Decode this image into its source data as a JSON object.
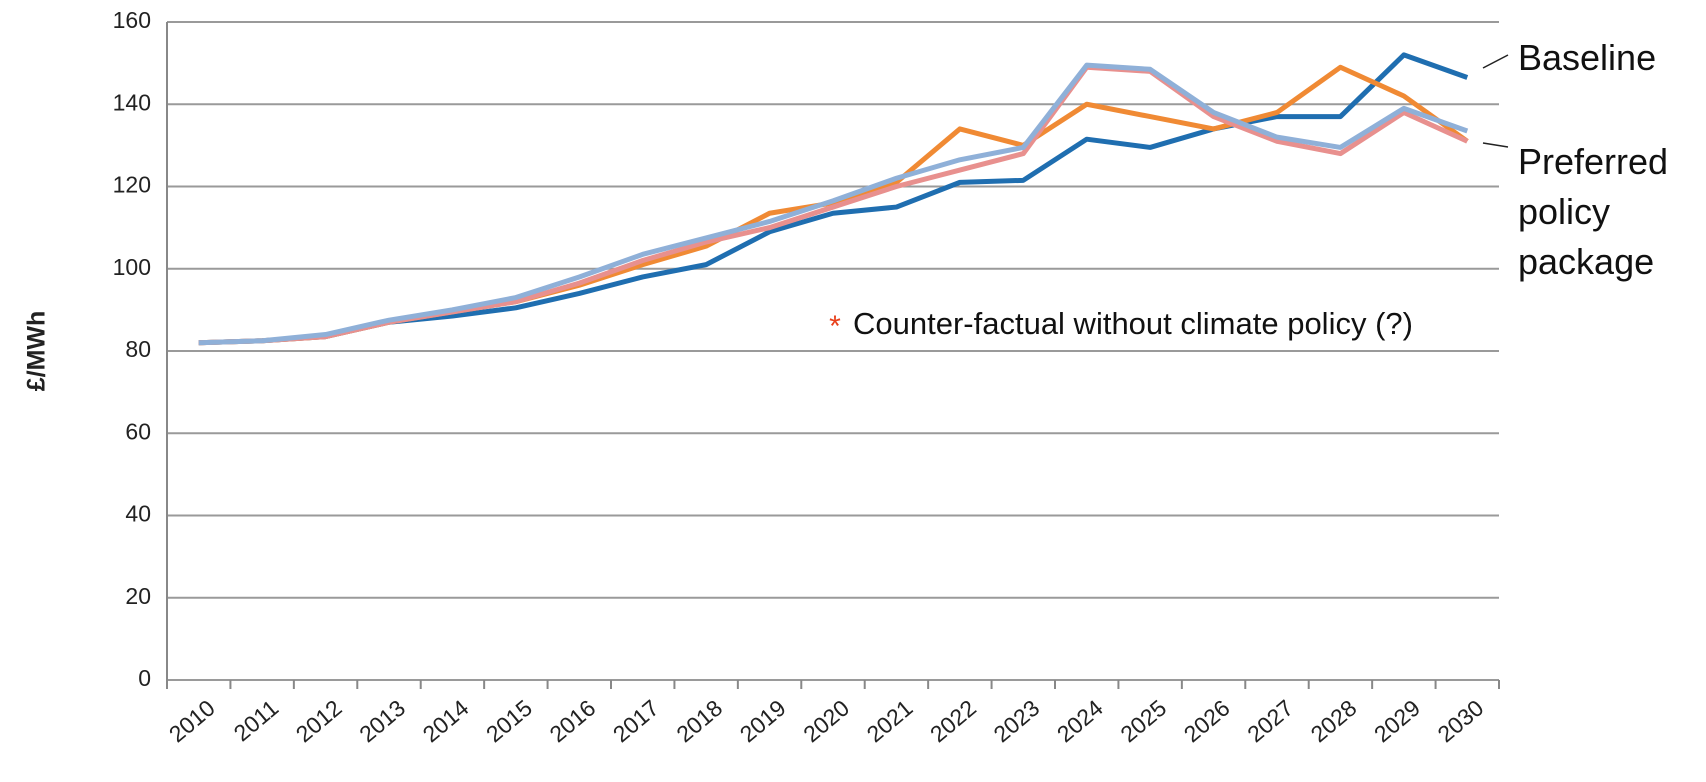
{
  "chart_data": {
    "type": "line",
    "y_label": "£/MWh",
    "categories": [
      "2010",
      "2011",
      "2012",
      "2013",
      "2014",
      "2015",
      "2016",
      "2017",
      "2018",
      "2019",
      "2020",
      "2021",
      "2022",
      "2023",
      "2024",
      "2025",
      "2026",
      "2027",
      "2028",
      "2029",
      "2030"
    ],
    "series": [
      {
        "name": "Baseline",
        "color": "#1f6eb0",
        "values": [
          82,
          82.5,
          83.5,
          87,
          88.5,
          90.5,
          94,
          98,
          101,
          109,
          113.5,
          115,
          121,
          121.5,
          131.5,
          129.5,
          134,
          137,
          137,
          152,
          146.5
        ]
      },
      {
        "name": "Counter-factual without climate policy (?)",
        "color": "#f08a34",
        "values": [
          82,
          82.5,
          83.5,
          87,
          89.5,
          92,
          96,
          101,
          105.5,
          113.5,
          116,
          121,
          134,
          130,
          140,
          137,
          134,
          138,
          149,
          142,
          131
        ]
      },
      {
        "color": "#e8908e",
        "values": [
          82,
          82.5,
          83.5,
          87,
          89.5,
          92,
          96.5,
          102,
          106.5,
          110,
          115,
          120,
          124,
          128,
          149,
          148,
          137,
          131,
          128,
          138,
          131
        ]
      },
      {
        "name": "Preferred policy package",
        "color": "#8fb0d8",
        "values": [
          82,
          82.5,
          84,
          87.5,
          90,
          93,
          98,
          103.5,
          107.5,
          111.5,
          116.5,
          122,
          126.5,
          129.5,
          149.5,
          148.5,
          138,
          132,
          129.5,
          139,
          133.5
        ]
      }
    ],
    "ylim": [
      0,
      160
    ],
    "yticks": [
      0,
      20,
      40,
      60,
      80,
      100,
      120,
      140,
      160
    ],
    "grid": true
  }
}
